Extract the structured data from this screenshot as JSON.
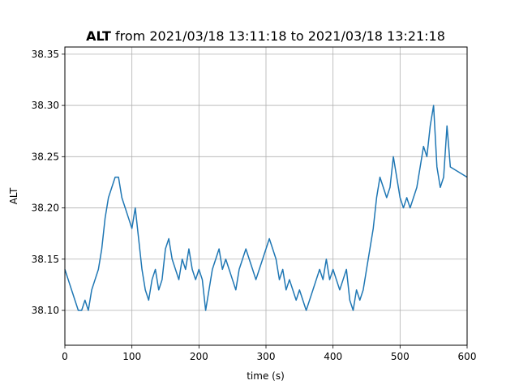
{
  "chart_data": {
    "type": "line",
    "title_bold": "ALT",
    "title_rest": " from 2021/03/18 13:11:18 to 2021/03/18 13:21:18",
    "xlabel": "time (s)",
    "ylabel": "ALT",
    "xlim": [
      0,
      600
    ],
    "ylim": [
      38.066,
      38.357
    ],
    "xticks": [
      0,
      100,
      200,
      300,
      400,
      500,
      600
    ],
    "yticks": [
      38.1,
      38.15,
      38.2,
      38.25,
      38.3,
      38.35
    ],
    "grid": true,
    "line_color": "#1f77b4",
    "series": [
      {
        "x": [
          0,
          5,
          10,
          15,
          20,
          25,
          30,
          35,
          40,
          45,
          50,
          55,
          60,
          65,
          70,
          75,
          80,
          85,
          90,
          95,
          100,
          105,
          110,
          115,
          120,
          125,
          130,
          135,
          140,
          145,
          150,
          155,
          160,
          165,
          170,
          175,
          180,
          185,
          190,
          195,
          200,
          205,
          210,
          215,
          220,
          225,
          230,
          235,
          240,
          245,
          250,
          255,
          260,
          265,
          270,
          275,
          280,
          285,
          290,
          295,
          300,
          305,
          310,
          315,
          320,
          325,
          330,
          335,
          340,
          345,
          350,
          355,
          360,
          365,
          370,
          375,
          380,
          385,
          390,
          395,
          400,
          405,
          410,
          415,
          420,
          425,
          430,
          435,
          440,
          445,
          450,
          455,
          460,
          465,
          470,
          475,
          480,
          485,
          490,
          495,
          500,
          505,
          510,
          515,
          520,
          525,
          530,
          535,
          540,
          545,
          550,
          555,
          560,
          565,
          570,
          575,
          600
        ],
        "y": [
          38.14,
          38.13,
          38.12,
          38.11,
          38.1,
          38.1,
          38.11,
          38.1,
          38.12,
          38.13,
          38.14,
          38.16,
          38.19,
          38.21,
          38.22,
          38.23,
          38.23,
          38.21,
          38.2,
          38.19,
          38.18,
          38.2,
          38.17,
          38.14,
          38.12,
          38.11,
          38.13,
          38.14,
          38.12,
          38.13,
          38.16,
          38.17,
          38.15,
          38.14,
          38.13,
          38.15,
          38.14,
          38.16,
          38.14,
          38.13,
          38.14,
          38.13,
          38.1,
          38.12,
          38.14,
          38.15,
          38.16,
          38.14,
          38.15,
          38.14,
          38.13,
          38.12,
          38.14,
          38.15,
          38.16,
          38.15,
          38.14,
          38.13,
          38.14,
          38.15,
          38.16,
          38.17,
          38.16,
          38.15,
          38.13,
          38.14,
          38.12,
          38.13,
          38.12,
          38.11,
          38.12,
          38.11,
          38.1,
          38.11,
          38.12,
          38.13,
          38.14,
          38.13,
          38.15,
          38.13,
          38.14,
          38.13,
          38.12,
          38.13,
          38.14,
          38.11,
          38.1,
          38.12,
          38.11,
          38.12,
          38.14,
          38.16,
          38.18,
          38.21,
          38.23,
          38.22,
          38.21,
          38.22,
          38.25,
          38.23,
          38.21,
          38.2,
          38.21,
          38.2,
          38.21,
          38.22,
          38.24,
          38.26,
          38.25,
          38.28,
          38.3,
          38.24,
          38.22,
          38.23,
          38.28,
          38.24,
          38.23
        ]
      }
    ]
  }
}
